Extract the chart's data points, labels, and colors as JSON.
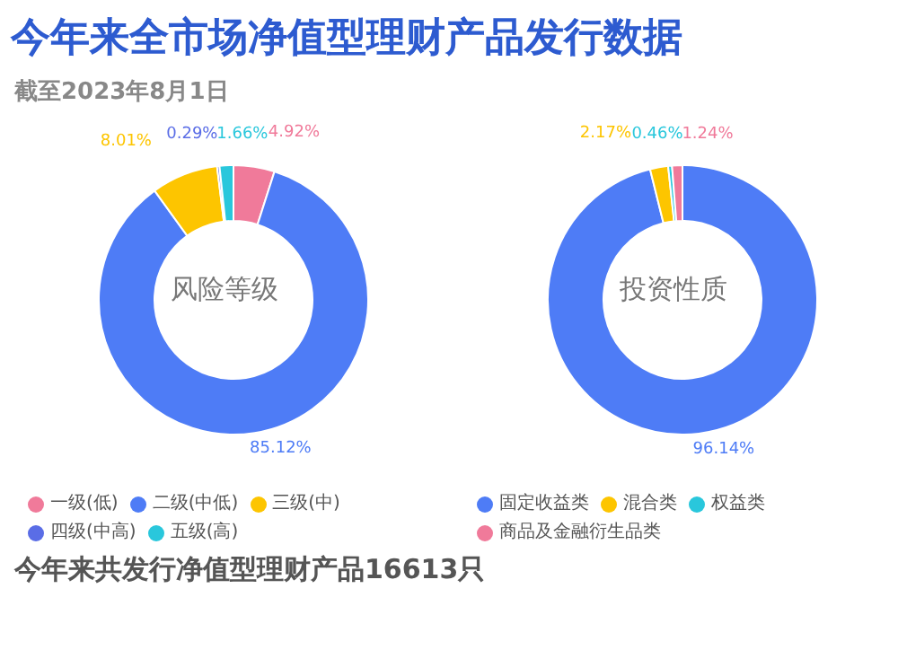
{
  "chart_data": [
    {
      "type": "donut",
      "title": "今年来全市场净值型理财产品发行数据",
      "subtitle": "截至2023年8月1日",
      "annotations": [
        "风险等级",
        "今年来共发行净值型理财产品16613只"
      ],
      "categories": [
        "一级(低)",
        "二级(中低)",
        "三级(中)",
        "四级(中高)",
        "五级(高)"
      ],
      "values": [
        4.92,
        85.12,
        8.01,
        0.29,
        1.66
      ],
      "value_labels": [
        "4.92%",
        "85.12%",
        "8.01%",
        "0.29%",
        "1.66%"
      ],
      "colors": [
        "#f07a9a",
        "#4e7cf6",
        "#fdc500",
        "#5a6de6",
        "#29c7dc"
      ],
      "legend": "bottom"
    },
    {
      "type": "donut",
      "annotations": [
        "投资性质"
      ],
      "categories": [
        "固定收益类",
        "混合类",
        "权益类",
        "商品及金融衍生品类"
      ],
      "values": [
        96.14,
        2.17,
        0.46,
        1.24
      ],
      "value_labels": [
        "96.14%",
        "2.17%",
        "0.46%",
        "1.24%"
      ],
      "colors": [
        "#4e7cf6",
        "#fdc500",
        "#29c7dc",
        "#f07a9a"
      ],
      "legend": "bottom"
    }
  ]
}
